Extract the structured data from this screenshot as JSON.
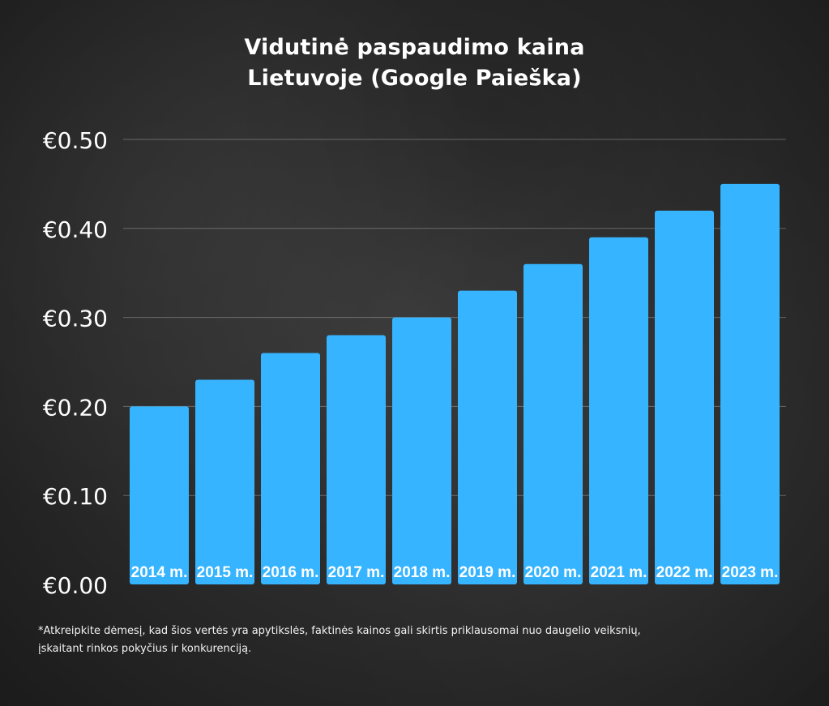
{
  "chart_data": {
    "type": "bar",
    "title_lines": [
      "Vidutinė paspaudimo kaina",
      "Lietuvoje (Google Paieška)"
    ],
    "categories": [
      "2014 m.",
      "2015 m.",
      "2016 m.",
      "2017 m.",
      "2018 m.",
      "2019 m.",
      "2020 m.",
      "2021 m.",
      "2022 m.",
      "2023 m."
    ],
    "values": [
      0.2,
      0.23,
      0.26,
      0.28,
      0.3,
      0.33,
      0.36,
      0.39,
      0.42,
      0.45
    ],
    "ylim": [
      0,
      0.5
    ],
    "yticks": [
      "€0.00",
      "€0.10",
      "€0.20",
      "€0.30",
      "€0.40",
      "€0.50"
    ],
    "ytick_values": [
      0,
      0.1,
      0.2,
      0.3,
      0.4,
      0.5
    ],
    "grid": true,
    "bar_color": "#36b4ff",
    "xlabel": "",
    "ylabel": ""
  },
  "footnote_lines": [
    "*Atkreipkite dėmesį, kad šios vertės yra apytikslės, faktinės kainos gali skirtis priklausomai nuo daugelio veiksnių,",
    "įskaitant rinkos pokyčius ir konkurenciją."
  ]
}
